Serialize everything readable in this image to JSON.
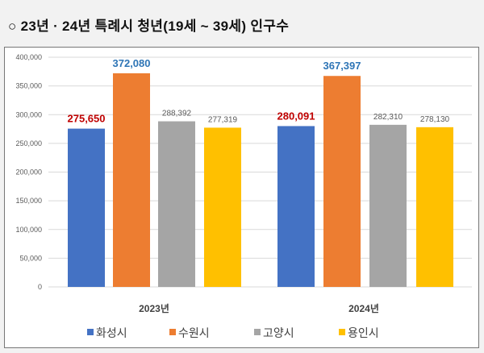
{
  "title": "○ 23년 · 24년 특례시 청년(19세 ~ 39세) 인구수",
  "chart_data": {
    "type": "bar",
    "title": "23년 · 24년 특례시 청년(19세 ~ 39세) 인구수",
    "categories": [
      "2023년",
      "2024년"
    ],
    "series": [
      {
        "name": "화성시",
        "color": "#4472c4",
        "label_color": "#c00000",
        "values": [
          275650,
          280091
        ],
        "labels": [
          "275,650",
          "280,091"
        ]
      },
      {
        "name": "수원시",
        "color": "#ed7d31",
        "label_color": "#2e75b6",
        "values": [
          372080,
          367397
        ],
        "labels": [
          "372,080",
          "367,397"
        ]
      },
      {
        "name": "고양시",
        "color": "#a5a5a5",
        "label_color": "#595959",
        "values": [
          288392,
          282310
        ],
        "labels": [
          "288,392",
          "282,310"
        ]
      },
      {
        "name": "용인시",
        "color": "#ffc000",
        "label_color": "#595959",
        "values": [
          277319,
          278130
        ],
        "labels": [
          "277,319",
          "278,130"
        ]
      }
    ],
    "ylim": [
      0,
      400000
    ],
    "yticks": [
      0,
      50000,
      100000,
      150000,
      200000,
      250000,
      300000,
      350000,
      400000
    ],
    "ytick_labels": [
      "0",
      "50,000",
      "100,000",
      "150,000",
      "200,000",
      "250,000",
      "300,000",
      "350,000",
      "400,000"
    ],
    "grid": true,
    "legend_position": "bottom",
    "xlabel": "",
    "ylabel": ""
  }
}
